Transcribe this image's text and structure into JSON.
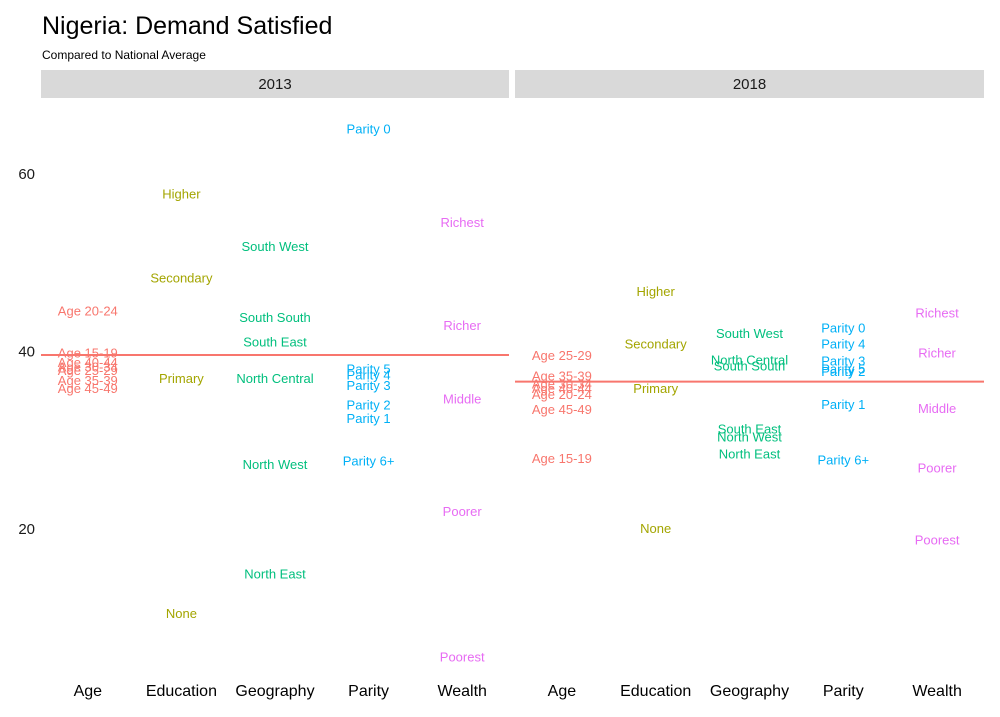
{
  "chart_data": {
    "type": "scatter",
    "title": "Nigeria: Demand Satisfied",
    "subtitle": "Compared to National Average",
    "ylim": [
      0,
      70
    ],
    "yticks": [
      20,
      40,
      60
    ],
    "categories": [
      "Age",
      "Education",
      "Geography",
      "Parity",
      "Wealth"
    ],
    "grid": false,
    "legend": "none",
    "colors": {
      "Age": "#F8766D",
      "Education": "#A3A500",
      "Geography": "#00BF7D",
      "Parity": "#00B0F6",
      "Wealth": "#E76BF3",
      "reference_line": "#F8766D",
      "strip_bg": "#D9D9D9"
    },
    "panels": [
      {
        "label": "2013",
        "national_average": 39.5,
        "points": [
          {
            "category": "Age",
            "label": "Age 20-24",
            "value": 44.5
          },
          {
            "category": "Age",
            "label": "Age 15-19",
            "value": 39.8
          },
          {
            "category": "Age",
            "label": "Age 40-44",
            "value": 38.7
          },
          {
            "category": "Age",
            "label": "Age 30-34",
            "value": 38.2
          },
          {
            "category": "Age",
            "label": "Age 25-29",
            "value": 37.8
          },
          {
            "category": "Age",
            "label": "Age 35-39",
            "value": 36.7
          },
          {
            "category": "Age",
            "label": "Age 45-49",
            "value": 35.8
          },
          {
            "category": "Education",
            "label": "Higher",
            "value": 57.7
          },
          {
            "category": "Education",
            "label": "Secondary",
            "value": 48.2
          },
          {
            "category": "Education",
            "label": "Primary",
            "value": 36.9
          },
          {
            "category": "Education",
            "label": "None",
            "value": 10.4
          },
          {
            "category": "Geography",
            "label": "South West",
            "value": 51.8
          },
          {
            "category": "Geography",
            "label": "South South",
            "value": 43.8
          },
          {
            "category": "Geography",
            "label": "South East",
            "value": 41.0
          },
          {
            "category": "Geography",
            "label": "North Central",
            "value": 36.9
          },
          {
            "category": "Geography",
            "label": "North West",
            "value": 27.2
          },
          {
            "category": "Geography",
            "label": "North East",
            "value": 14.9
          },
          {
            "category": "Parity",
            "label": "Parity 0",
            "value": 65.0
          },
          {
            "category": "Parity",
            "label": "Parity 5",
            "value": 38.0
          },
          {
            "category": "Parity",
            "label": "Parity 4",
            "value": 37.3
          },
          {
            "category": "Parity",
            "label": "Parity 3",
            "value": 36.1
          },
          {
            "category": "Parity",
            "label": "Parity 2",
            "value": 33.9
          },
          {
            "category": "Parity",
            "label": "Parity 1",
            "value": 32.4
          },
          {
            "category": "Parity",
            "label": "Parity 6+",
            "value": 27.6
          },
          {
            "category": "Wealth",
            "label": "Richest",
            "value": 54.5
          },
          {
            "category": "Wealth",
            "label": "Richer",
            "value": 42.9
          },
          {
            "category": "Wealth",
            "label": "Middle",
            "value": 34.6
          },
          {
            "category": "Wealth",
            "label": "Poorer",
            "value": 21.9
          },
          {
            "category": "Wealth",
            "label": "Poorest",
            "value": 5.5
          }
        ]
      },
      {
        "label": "2018",
        "national_average": 36.5,
        "points": [
          {
            "category": "Age",
            "label": "Age 25-29",
            "value": 39.5
          },
          {
            "category": "Age",
            "label": "Age 35-39",
            "value": 37.2
          },
          {
            "category": "Age",
            "label": "Age 30-34",
            "value": 36.3
          },
          {
            "category": "Age",
            "label": "Age 40-44",
            "value": 35.8
          },
          {
            "category": "Age",
            "label": "Age 20-24",
            "value": 35.1
          },
          {
            "category": "Age",
            "label": "Age 45-49",
            "value": 33.4
          },
          {
            "category": "Age",
            "label": "Age 15-19",
            "value": 27.9
          },
          {
            "category": "Education",
            "label": "Higher",
            "value": 46.7
          },
          {
            "category": "Education",
            "label": "Secondary",
            "value": 40.8
          },
          {
            "category": "Education",
            "label": "Primary",
            "value": 35.8
          },
          {
            "category": "Education",
            "label": "None",
            "value": 20.0
          },
          {
            "category": "Geography",
            "label": "South West",
            "value": 42.0
          },
          {
            "category": "Geography",
            "label": "North Central",
            "value": 39.0
          },
          {
            "category": "Geography",
            "label": "South South",
            "value": 38.3
          },
          {
            "category": "Geography",
            "label": "South East",
            "value": 31.2
          },
          {
            "category": "Geography",
            "label": "North West",
            "value": 30.3
          },
          {
            "category": "Geography",
            "label": "North East",
            "value": 28.4
          },
          {
            "category": "Parity",
            "label": "Parity 0",
            "value": 42.6
          },
          {
            "category": "Parity",
            "label": "Parity 4",
            "value": 40.8
          },
          {
            "category": "Parity",
            "label": "Parity 3",
            "value": 38.9
          },
          {
            "category": "Parity",
            "label": "Parity 5",
            "value": 38.0
          },
          {
            "category": "Parity",
            "label": "Parity 2",
            "value": 37.7
          },
          {
            "category": "Parity",
            "label": "Parity 1",
            "value": 34.0
          },
          {
            "category": "Parity",
            "label": "Parity 6+",
            "value": 27.7
          },
          {
            "category": "Wealth",
            "label": "Richest",
            "value": 44.3
          },
          {
            "category": "Wealth",
            "label": "Richer",
            "value": 39.8
          },
          {
            "category": "Wealth",
            "label": "Middle",
            "value": 33.5
          },
          {
            "category": "Wealth",
            "label": "Poorer",
            "value": 26.8
          },
          {
            "category": "Wealth",
            "label": "Poorest",
            "value": 18.7
          }
        ]
      }
    ]
  }
}
